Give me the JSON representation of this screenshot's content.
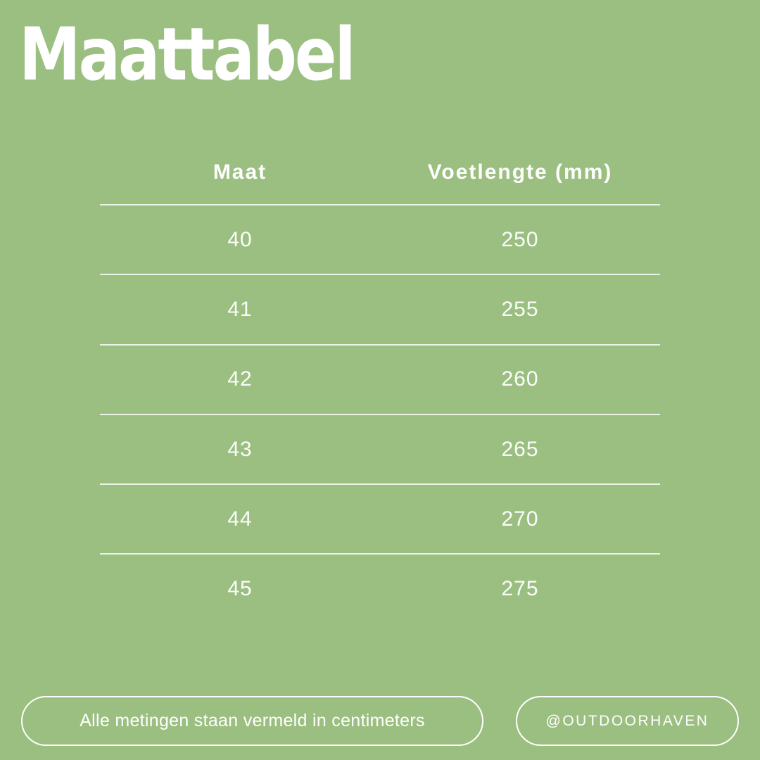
{
  "title": "Maattabel",
  "colors": {
    "background": "#9bbf81",
    "text": "#ffffff",
    "divider": "rgba(255,255,255,0.8)"
  },
  "footer": {
    "note": "Alle metingen staan vermeld in centimeters",
    "handle": "@OUTDOORHAVEN"
  },
  "chart_data": {
    "type": "table",
    "title": "Maattabel",
    "columns": [
      "Maat",
      "Voetlengte (mm)"
    ],
    "rows": [
      [
        "40",
        "250"
      ],
      [
        "41",
        "255"
      ],
      [
        "42",
        "260"
      ],
      [
        "43",
        "265"
      ],
      [
        "44",
        "270"
      ],
      [
        "45",
        "275"
      ]
    ],
    "footnote": "Alle metingen staan vermeld in centimeters",
    "attribution": "@OUTDOORHAVEN"
  }
}
